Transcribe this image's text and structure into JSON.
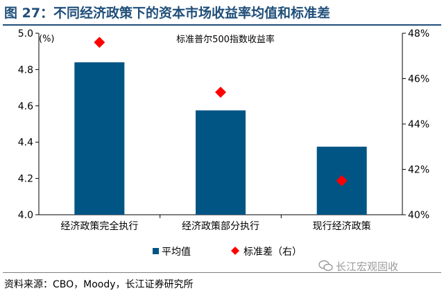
{
  "figure_title": "图 27：不同经济政策下的资本市场收益率均值和标准差",
  "source": "资料来源：CBO，Moody，长江证券研究所",
  "watermark": "长江宏观固收",
  "colors": {
    "bar": "#005584",
    "diamond": "#ff0000",
    "title": "#1f4e79"
  },
  "chart_data": {
    "type": "bar",
    "title": "标准普尔500指数收益率",
    "categories": [
      "经济政策完全执行",
      "经济政策部分执行",
      "现行经济政策"
    ],
    "series": [
      {
        "name": "平均值",
        "type": "bar",
        "axis": "left",
        "values": [
          4.84,
          4.575,
          4.375
        ]
      },
      {
        "name": "标准差（右）",
        "type": "scatter",
        "axis": "right",
        "values": [
          47.6,
          45.4,
          41.5
        ]
      }
    ],
    "ylabel_unit": "(%)",
    "ylim": [
      4.0,
      5.0
    ],
    "yticks": [
      "4.0",
      "4.2",
      "4.4",
      "4.6",
      "4.8",
      "5.0"
    ],
    "y2lim": [
      40,
      48
    ],
    "y2ticks": [
      "40%",
      "42%",
      "44%",
      "46%",
      "48%"
    ],
    "grid": false,
    "legend_position": "bottom"
  }
}
